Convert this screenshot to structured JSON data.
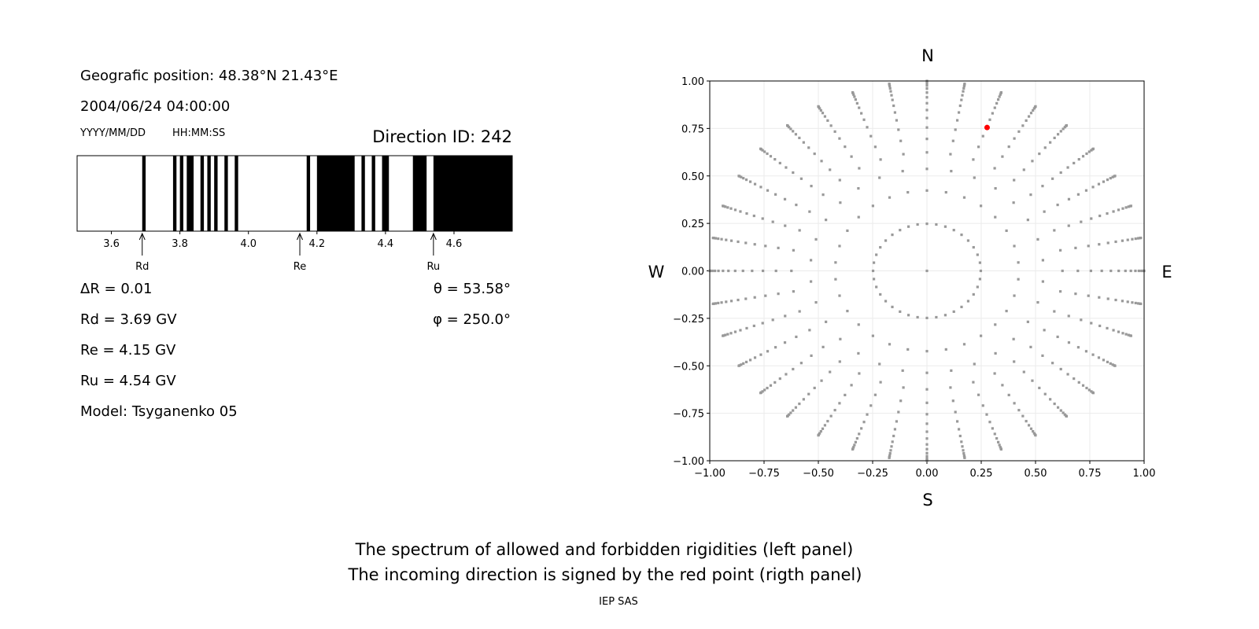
{
  "left_panel": {
    "position": "Geografic position: 48.38°N 21.43°E",
    "datetime": "2004/06/24 04:00:00",
    "date_format": "YYYY/MM/DD",
    "time_format": "HH:MM:SS",
    "direction_id": "Direction ID: 242",
    "delta_r": "ΔR = 0.01",
    "rd": "Rd = 3.69 GV",
    "re": "Re = 4.15 GV",
    "ru": "Ru = 4.54 GV",
    "model": "Model: Tsyganenko 05",
    "theta": "θ = 53.58°",
    "phi": "φ = 250.0°"
  },
  "captions": {
    "line1": "The spectrum of allowed and forbidden rigidities (left panel)",
    "line2": "The incoming direction is signed by the red point (rigth panel)",
    "credit": "IEP SAS"
  },
  "chart_data": [
    {
      "type": "bar",
      "description_role": "rigidity spectrum",
      "xlim": [
        3.5,
        4.77
      ],
      "xticks": [
        3.6,
        3.8,
        4.0,
        4.2,
        4.4,
        4.6
      ],
      "xtick_labels": [
        "3.6",
        "3.8",
        "4.0",
        "4.2",
        "4.4",
        "4.6"
      ],
      "bin_width": 0.01,
      "forbidden_color": "#000000",
      "allowed_color": "#ffffff",
      "forbidden_intervals": [
        [
          3.69,
          3.7
        ],
        [
          3.78,
          3.79
        ],
        [
          3.8,
          3.81
        ],
        [
          3.82,
          3.84
        ],
        [
          3.86,
          3.87
        ],
        [
          3.88,
          3.89
        ],
        [
          3.9,
          3.91
        ],
        [
          3.93,
          3.94
        ],
        [
          3.96,
          3.97
        ],
        [
          4.17,
          4.18
        ],
        [
          4.2,
          4.31
        ],
        [
          4.33,
          4.34
        ],
        [
          4.36,
          4.37
        ],
        [
          4.39,
          4.41
        ],
        [
          4.48,
          4.52
        ],
        [
          4.54,
          4.77
        ]
      ],
      "markers": [
        {
          "label": "Rd",
          "value": 3.69
        },
        {
          "label": "Re",
          "value": 4.15
        },
        {
          "label": "Ru",
          "value": 4.54
        }
      ]
    },
    {
      "type": "scatter",
      "xlim": [
        -1,
        1
      ],
      "ylim": [
        -1,
        1
      ],
      "xticks": [
        "−1.00",
        "−0.75",
        "−0.50",
        "−0.25",
        "0.00",
        "0.25",
        "0.50",
        "0.75",
        "1.00"
      ],
      "yticks": [
        "−1.00",
        "−0.75",
        "−0.50",
        "−0.25",
        "0.00",
        "0.25",
        "0.50",
        "0.75",
        "1.00"
      ],
      "grid": true,
      "compass": {
        "top": "N",
        "bottom": "S",
        "left": "W",
        "right": "E"
      },
      "point_color": "#999999",
      "highlight_color": "#ff0000",
      "center_point": [
        0,
        0
      ],
      "rings": [
        {
          "r": 0.248,
          "n": 36
        },
        {
          "r": 0.423,
          "n": 30
        },
        {
          "r": 0.537,
          "n": 30
        },
        {
          "r": 0.624,
          "n": 36
        },
        {
          "r": 0.695,
          "n": 36
        },
        {
          "r": 0.755,
          "n": 36
        },
        {
          "r": 0.805,
          "n": 36
        },
        {
          "r": 0.847,
          "n": 36
        },
        {
          "r": 0.883,
          "n": 36
        },
        {
          "r": 0.914,
          "n": 36
        },
        {
          "r": 0.939,
          "n": 36
        },
        {
          "r": 0.96,
          "n": 36
        },
        {
          "r": 0.976,
          "n": 36
        },
        {
          "r": 0.988,
          "n": 36
        },
        {
          "r": 0.996,
          "n": 36
        },
        {
          "r": 1.0,
          "n": 36
        }
      ],
      "highlight_point": {
        "x": 0.277,
        "y": 0.755
      }
    }
  ]
}
